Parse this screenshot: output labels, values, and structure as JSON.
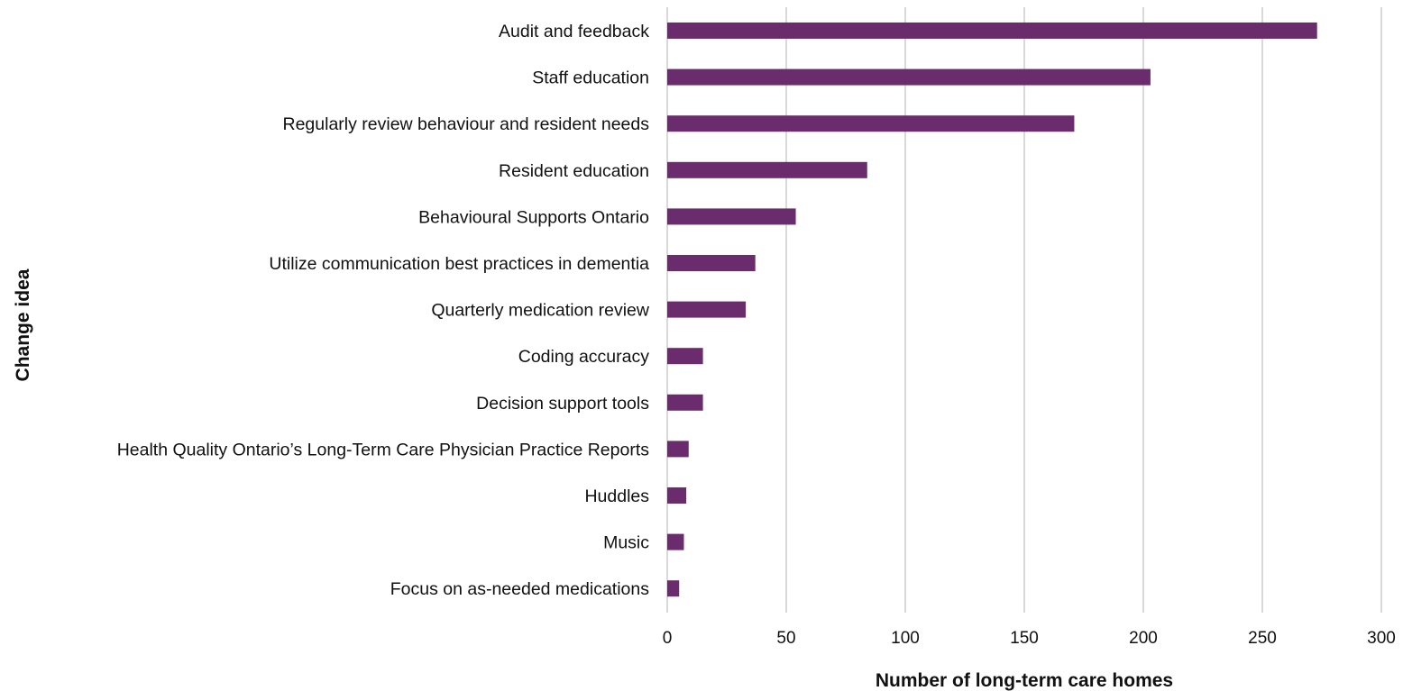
{
  "chart_data": {
    "type": "bar",
    "orientation": "horizontal",
    "title": "",
    "xlabel": "Number of long-term care homes",
    "ylabel": "Change idea",
    "xlim": [
      0,
      300
    ],
    "xticks": [
      "0",
      "50",
      "100",
      "150",
      "200",
      "250",
      "300"
    ],
    "grid": true,
    "bar_color": "#6a2c6c",
    "grid_color": "#d9d9d9",
    "categories": [
      "Audit and feedback",
      "Staff education",
      "Regularly review behaviour and resident needs",
      "Resident education",
      "Behavioural Supports Ontario",
      "Utilize communication best practices in dementia",
      "Quarterly medication review",
      "Coding accuracy",
      "Decision support tools",
      "Health Quality Ontario’s Long-Term Care Physician Practice Reports",
      "Huddles",
      "Music",
      "Focus on as-needed medications"
    ],
    "values": [
      273,
      203,
      171,
      84,
      54,
      37,
      33,
      15,
      15,
      9,
      8,
      7,
      5
    ]
  }
}
